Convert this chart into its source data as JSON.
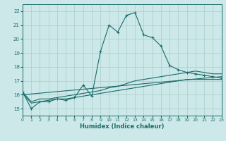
{
  "xlabel": "Humidex (Indice chaleur)",
  "bg_color": "#cce8e8",
  "grid_color": "#aacccc",
  "line_color": "#1a6b6b",
  "xmin": 0,
  "xmax": 23,
  "ymin": 14.5,
  "ymax": 22.5,
  "yticks": [
    15,
    16,
    17,
    18,
    19,
    20,
    21,
    22
  ],
  "xticks": [
    0,
    1,
    2,
    3,
    4,
    5,
    6,
    7,
    8,
    9,
    10,
    11,
    12,
    13,
    14,
    15,
    16,
    17,
    18,
    19,
    20,
    21,
    22,
    23
  ],
  "series1_x": [
    0,
    1,
    2,
    3,
    4,
    5,
    6,
    7,
    8,
    9,
    10,
    11,
    12,
    13,
    14,
    15,
    16,
    17,
    18,
    19,
    20,
    21,
    22,
    23
  ],
  "series1_y": [
    16.2,
    15.0,
    15.5,
    15.5,
    15.7,
    15.6,
    15.8,
    16.7,
    15.9,
    19.1,
    21.0,
    20.5,
    21.7,
    21.9,
    20.3,
    20.1,
    19.5,
    18.1,
    17.8,
    17.6,
    17.5,
    17.4,
    17.3,
    17.2
  ],
  "series2_x": [
    0,
    1,
    2,
    3,
    4,
    5,
    6,
    7,
    8,
    9,
    10,
    11,
    12,
    13,
    14,
    15,
    16,
    17,
    18,
    19,
    20,
    21,
    22,
    23
  ],
  "series2_y": [
    16.2,
    15.5,
    15.7,
    15.7,
    15.8,
    15.9,
    16.0,
    16.1,
    16.2,
    16.3,
    16.5,
    16.6,
    16.8,
    17.0,
    17.1,
    17.2,
    17.3,
    17.4,
    17.5,
    17.6,
    17.7,
    17.6,
    17.5,
    17.5
  ],
  "series3_x": [
    0,
    1,
    2,
    3,
    4,
    5,
    6,
    7,
    8,
    9,
    10,
    11,
    12,
    13,
    14,
    15,
    16,
    17,
    18,
    19,
    20,
    21,
    22,
    23
  ],
  "series3_y": [
    16.1,
    15.4,
    15.5,
    15.6,
    15.7,
    15.7,
    15.8,
    15.9,
    16.0,
    16.1,
    16.2,
    16.3,
    16.4,
    16.5,
    16.6,
    16.7,
    16.8,
    16.9,
    17.0,
    17.1,
    17.1,
    17.1,
    17.1,
    17.1
  ],
  "series4_x": [
    0,
    23
  ],
  "series4_y": [
    16.0,
    17.3
  ]
}
